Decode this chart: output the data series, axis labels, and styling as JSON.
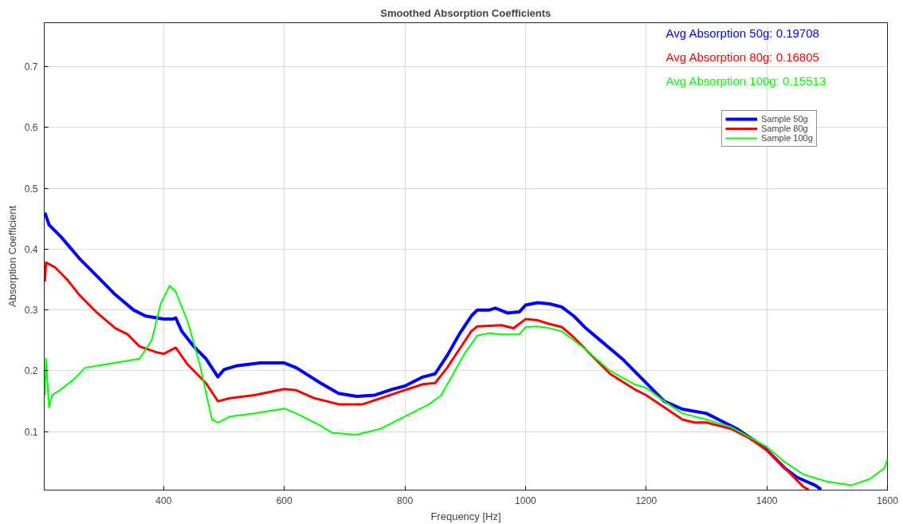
{
  "chart_data": {
    "type": "line",
    "title": "Smoothed Absorption Coefficients",
    "xlabel": "Frequency [Hz]",
    "ylabel": "Absorption Coefficient",
    "xlim": [
      202,
      1600
    ],
    "ylim": [
      0.004,
      0.772
    ],
    "xticks": [
      400,
      600,
      800,
      1000,
      1200,
      1400,
      1600
    ],
    "yticks": [
      0.1,
      0.2,
      0.3,
      0.4,
      0.5,
      0.6,
      0.7
    ],
    "grid": true,
    "legend": "top right",
    "line_style": "solid",
    "marker": "none",
    "annotations": [
      "Avg Absorption 50g: 0.19708",
      "Avg Absorption 80g: 0.16805",
      "Avg Absorption 100g: 0.15513"
    ],
    "series": [
      {
        "name": "Sample 50g",
        "color": "#0000ff",
        "x": [
          203,
          210,
          230,
          260,
          290,
          320,
          350,
          370,
          400,
          415,
          420,
          430,
          450,
          470,
          490,
          500,
          520,
          560,
          600,
          620,
          660,
          690,
          720,
          750,
          780,
          800,
          830,
          850,
          870,
          890,
          910,
          920,
          940,
          950,
          970,
          990,
          1000,
          1020,
          1040,
          1060,
          1080,
          1100,
          1130,
          1160,
          1200,
          1230,
          1260,
          1300,
          1320,
          1350,
          1380,
          1400,
          1430,
          1450,
          1480,
          1490
        ],
        "values": [
          0.46,
          0.44,
          0.42,
          0.385,
          0.355,
          0.325,
          0.3,
          0.29,
          0.285,
          0.285,
          0.287,
          0.265,
          0.24,
          0.22,
          0.19,
          0.202,
          0.208,
          0.213,
          0.213,
          0.205,
          0.18,
          0.163,
          0.158,
          0.16,
          0.17,
          0.175,
          0.19,
          0.195,
          0.225,
          0.26,
          0.29,
          0.3,
          0.3,
          0.303,
          0.295,
          0.297,
          0.308,
          0.312,
          0.31,
          0.305,
          0.29,
          0.27,
          0.245,
          0.22,
          0.18,
          0.15,
          0.137,
          0.13,
          0.12,
          0.105,
          0.085,
          0.07,
          0.04,
          0.025,
          0.012,
          0.005
        ]
      },
      {
        "name": "Sample 80g",
        "color": "#ff0000",
        "x": [
          203,
          205,
          220,
          240,
          260,
          290,
          320,
          340,
          360,
          390,
          400,
          420,
          440,
          470,
          490,
          510,
          550,
          600,
          620,
          650,
          690,
          730,
          760,
          790,
          830,
          850,
          870,
          890,
          910,
          920,
          960,
          980,
          1000,
          1020,
          1040,
          1060,
          1080,
          1100,
          1140,
          1180,
          1200,
          1230,
          1260,
          1280,
          1300,
          1340,
          1370,
          1400,
          1430,
          1460,
          1470
        ],
        "values": [
          0.347,
          0.378,
          0.37,
          0.35,
          0.325,
          0.295,
          0.27,
          0.26,
          0.24,
          0.23,
          0.228,
          0.238,
          0.21,
          0.18,
          0.15,
          0.155,
          0.16,
          0.17,
          0.168,
          0.155,
          0.145,
          0.145,
          0.155,
          0.165,
          0.178,
          0.18,
          0.205,
          0.235,
          0.265,
          0.273,
          0.275,
          0.27,
          0.285,
          0.283,
          0.277,
          0.272,
          0.255,
          0.235,
          0.195,
          0.17,
          0.16,
          0.14,
          0.12,
          0.115,
          0.115,
          0.105,
          0.09,
          0.07,
          0.04,
          0.01,
          0.004
        ]
      },
      {
        "name": "Sample 100g",
        "color": "#00ff00",
        "x": [
          203,
          205,
          208,
          210,
          215,
          230,
          250,
          270,
          300,
          330,
          360,
          380,
          395,
          410,
          420,
          440,
          460,
          480,
          490,
          510,
          550,
          600,
          620,
          660,
          680,
          720,
          760,
          800,
          840,
          860,
          880,
          900,
          920,
          940,
          960,
          990,
          1000,
          1020,
          1040,
          1060,
          1080,
          1100,
          1140,
          1180,
          1200,
          1230,
          1260,
          1300,
          1340,
          1370,
          1400,
          1430,
          1460,
          1500,
          1540,
          1570,
          1595,
          1600
        ],
        "values": [
          0.16,
          0.22,
          0.17,
          0.14,
          0.16,
          0.17,
          0.185,
          0.205,
          0.21,
          0.215,
          0.22,
          0.25,
          0.31,
          0.34,
          0.33,
          0.28,
          0.21,
          0.12,
          0.115,
          0.125,
          0.13,
          0.138,
          0.13,
          0.11,
          0.098,
          0.095,
          0.105,
          0.125,
          0.145,
          0.16,
          0.195,
          0.23,
          0.258,
          0.262,
          0.26,
          0.26,
          0.272,
          0.273,
          0.27,
          0.265,
          0.25,
          0.235,
          0.2,
          0.178,
          0.172,
          0.15,
          0.13,
          0.12,
          0.108,
          0.092,
          0.075,
          0.05,
          0.03,
          0.018,
          0.012,
          0.022,
          0.04,
          0.055
        ]
      }
    ]
  }
}
